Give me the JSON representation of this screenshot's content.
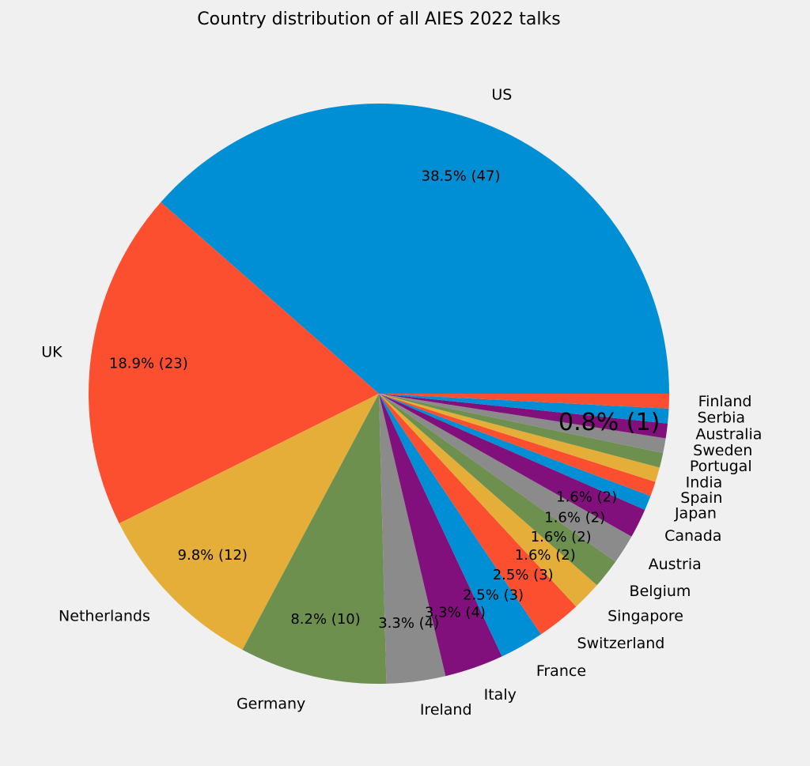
{
  "chart_data": {
    "type": "pie",
    "title": "Country distribution of all AIES 2022 talks",
    "categories": [
      "US",
      "UK",
      "Netherlands",
      "Germany",
      "Ireland",
      "Italy",
      "France",
      "Switzerland",
      "Singapore",
      "Belgium",
      "Austria",
      "Canada",
      "Japan",
      "Spain",
      "India",
      "Portugal",
      "Sweden",
      "Australia",
      "Serbia",
      "Finland"
    ],
    "values": [
      47,
      23,
      12,
      10,
      4,
      4,
      3,
      3,
      2,
      2,
      2,
      2,
      1,
      1,
      1,
      1,
      1,
      1,
      1,
      1
    ],
    "percent_labels": [
      "38.5% (47)",
      "18.9% (23)",
      "9.8% (12)",
      "8.2% (10)",
      "3.3% (4)",
      "3.3% (4)",
      "2.5% (3)",
      "2.5% (3)",
      "1.6% (2)",
      "1.6% (2)",
      "1.6% (2)",
      "1.6% (2)",
      "",
      "",
      "",
      "",
      "",
      "0.8% (1)",
      "",
      ""
    ],
    "colors": [
      "#008fd5",
      "#fc4f30",
      "#e5ae38",
      "#6d904f",
      "#8b8b8b",
      "#810f7c"
    ],
    "start_angle_deg": 0,
    "direction": "counterclockwise",
    "legend": "none"
  }
}
